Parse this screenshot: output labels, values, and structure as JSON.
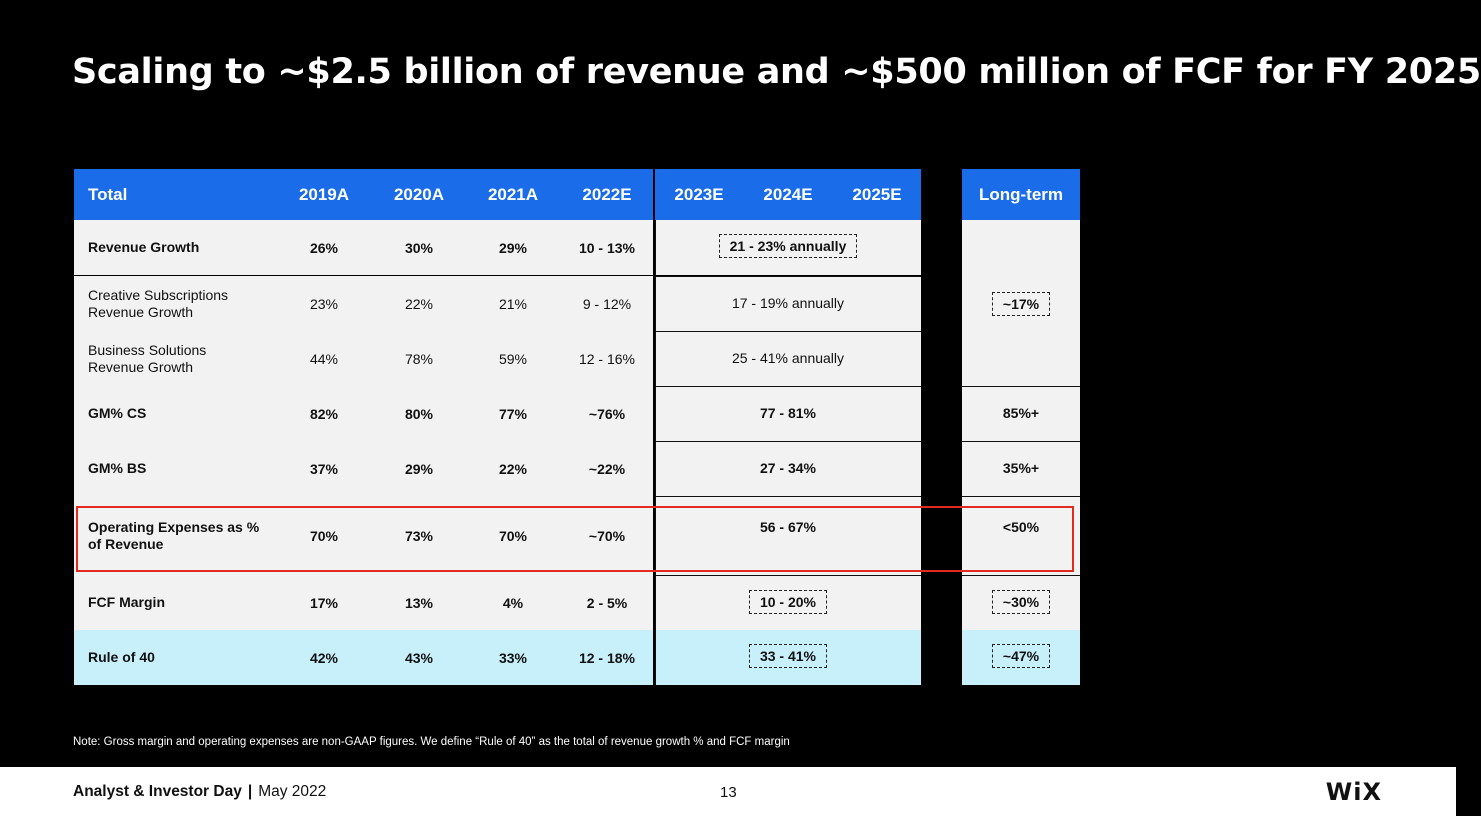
{
  "title": "Scaling to ~$2.5 billion of revenue and ~$500 million of FCF for FY 2025",
  "table": {
    "historic_headers": [
      "Total",
      "2019A",
      "2020A",
      "2021A",
      "2022E"
    ],
    "forecast_headers": [
      "2023E",
      "2024E",
      "2025E"
    ],
    "longterm_header": "Long-term",
    "rows": [
      {
        "label": "Revenue Growth",
        "bold": true,
        "values": [
          "26%",
          "30%",
          "29%",
          "10 - 13%"
        ],
        "forecast": "21 - 23% annually",
        "forecast_dashed": true,
        "longterm": ""
      },
      {
        "label": "Creative Subscriptions Revenue Growth",
        "bold": false,
        "values": [
          "23%",
          "22%",
          "21%",
          "9 - 12%"
        ],
        "forecast": "17 - 19% annually",
        "forecast_dashed": false,
        "longterm": "~17%",
        "longterm_dashed": true
      },
      {
        "label": "Business Solutions Revenue Growth",
        "bold": false,
        "values": [
          "44%",
          "78%",
          "59%",
          "12 - 16%"
        ],
        "forecast": "25 - 41% annually",
        "forecast_dashed": false,
        "longterm": ""
      },
      {
        "label": "GM% CS",
        "bold": true,
        "values": [
          "82%",
          "80%",
          "77%",
          "~76%"
        ],
        "forecast": "77 - 81%",
        "forecast_dashed": false,
        "longterm": "85%+"
      },
      {
        "label": "GM% BS",
        "bold": true,
        "values": [
          "37%",
          "29%",
          "22%",
          "~22%"
        ],
        "forecast": "27 - 34%",
        "forecast_dashed": false,
        "longterm": "35%+"
      },
      {
        "label": "Operating Expenses as % of Revenue",
        "bold": true,
        "values": [
          "70%",
          "73%",
          "70%",
          "~70%"
        ],
        "forecast": "56 - 67%",
        "forecast_dashed": false,
        "longterm": "<50%"
      },
      {
        "label": "FCF Margin",
        "bold": true,
        "values": [
          "17%",
          "13%",
          "4%",
          "2 - 5%"
        ],
        "forecast": "10 - 20%",
        "forecast_dashed": true,
        "longterm": "~30%",
        "longterm_dashed": true
      },
      {
        "label": "Rule of 40",
        "bold": true,
        "values": [
          "42%",
          "43%",
          "33%",
          "12 - 18%"
        ],
        "forecast": "33 - 41%",
        "forecast_dashed": true,
        "longterm": "~47%",
        "longterm_dashed": true
      }
    ]
  },
  "note": "Note: Gross margin and operating expenses are non-GAAP figures. We define “Rule of 40” as the total of revenue growth % and FCF margin",
  "footer": {
    "event": "Analyst & Investor Day",
    "separator": "|",
    "date": "May 2022",
    "page": "13",
    "logo": "WiX"
  },
  "colors": {
    "header_blue": "#1a6ce8",
    "rule_row": "#c8f0fb",
    "highlight": "#e12b1f"
  }
}
